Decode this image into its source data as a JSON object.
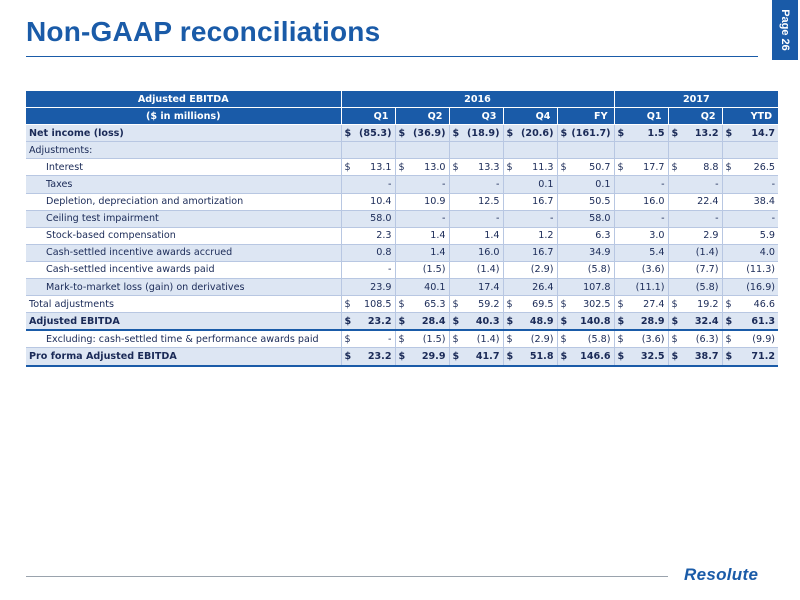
{
  "title": "Non-GAAP reconciliations",
  "page_label": "Page 26",
  "logo_text": "Resolute",
  "table": {
    "header_label": "Adjusted EBITDA",
    "unit_label": "($ in millions)",
    "year_2016": "2016",
    "year_2017": "2017",
    "columns": [
      "Q1",
      "Q2",
      "Q3",
      "Q4",
      "FY",
      "Q1",
      "Q2",
      "YTD"
    ],
    "rows": [
      {
        "label": "Net income (loss)",
        "values": [
          [
            "$",
            "(85.3)"
          ],
          [
            "$",
            "(36.9)"
          ],
          [
            "$",
            "(18.9)"
          ],
          [
            "$",
            "(20.6)"
          ],
          [
            "$",
            "(161.7)"
          ],
          [
            "$",
            "1.5"
          ],
          [
            "$",
            "13.2"
          ],
          [
            "$",
            "14.7"
          ]
        ]
      },
      {
        "label": "Adjustments:",
        "values": [
          [
            "",
            ""
          ],
          [
            "",
            ""
          ],
          [
            "",
            ""
          ],
          [
            "",
            ""
          ],
          [
            "",
            ""
          ],
          [
            "",
            ""
          ],
          [
            "",
            ""
          ],
          [
            "",
            ""
          ]
        ]
      },
      {
        "label": "Interest",
        "values": [
          [
            "$",
            "13.1"
          ],
          [
            "$",
            "13.0"
          ],
          [
            "$",
            "13.3"
          ],
          [
            "$",
            "11.3"
          ],
          [
            "$",
            "50.7"
          ],
          [
            "$",
            "17.7"
          ],
          [
            "$",
            "8.8"
          ],
          [
            "$",
            "26.5"
          ]
        ]
      },
      {
        "label": "Taxes",
        "values": [
          [
            "",
            "-"
          ],
          [
            "",
            "-"
          ],
          [
            "",
            "-"
          ],
          [
            "",
            "0.1"
          ],
          [
            "",
            "0.1"
          ],
          [
            "",
            "-"
          ],
          [
            "",
            "-"
          ],
          [
            "",
            "-"
          ]
        ]
      },
      {
        "label": "Depletion, depreciation and amortization",
        "values": [
          [
            "",
            "10.4"
          ],
          [
            "",
            "10.9"
          ],
          [
            "",
            "12.5"
          ],
          [
            "",
            "16.7"
          ],
          [
            "",
            "50.5"
          ],
          [
            "",
            "16.0"
          ],
          [
            "",
            "22.4"
          ],
          [
            "",
            "38.4"
          ]
        ]
      },
      {
        "label": "Ceiling test impairment",
        "values": [
          [
            "",
            "58.0"
          ],
          [
            "",
            "-"
          ],
          [
            "",
            "-"
          ],
          [
            "",
            "-"
          ],
          [
            "",
            "58.0"
          ],
          [
            "",
            "-"
          ],
          [
            "",
            "-"
          ],
          [
            "",
            "-"
          ]
        ]
      },
      {
        "label": "Stock-based compensation",
        "values": [
          [
            "",
            "2.3"
          ],
          [
            "",
            "1.4"
          ],
          [
            "",
            "1.4"
          ],
          [
            "",
            "1.2"
          ],
          [
            "",
            "6.3"
          ],
          [
            "",
            "3.0"
          ],
          [
            "",
            "2.9"
          ],
          [
            "",
            "5.9"
          ]
        ]
      },
      {
        "label": "Cash-settled incentive awards accrued",
        "values": [
          [
            "",
            "0.8"
          ],
          [
            "",
            "1.4"
          ],
          [
            "",
            "16.0"
          ],
          [
            "",
            "16.7"
          ],
          [
            "",
            "34.9"
          ],
          [
            "",
            "5.4"
          ],
          [
            "",
            "(1.4)"
          ],
          [
            "",
            "4.0"
          ]
        ]
      },
      {
        "label": "Cash-settled incentive awards paid",
        "values": [
          [
            "",
            "-"
          ],
          [
            "",
            "(1.5)"
          ],
          [
            "",
            "(1.4)"
          ],
          [
            "",
            "(2.9)"
          ],
          [
            "",
            "(5.8)"
          ],
          [
            "",
            "(3.6)"
          ],
          [
            "",
            "(7.7)"
          ],
          [
            "",
            "(11.3)"
          ]
        ]
      },
      {
        "label": "Mark-to-market loss (gain) on derivatives",
        "values": [
          [
            "",
            "23.9"
          ],
          [
            "",
            "40.1"
          ],
          [
            "",
            "17.4"
          ],
          [
            "",
            "26.4"
          ],
          [
            "",
            "107.8"
          ],
          [
            "",
            "(11.1)"
          ],
          [
            "",
            "(5.8)"
          ],
          [
            "",
            "(16.9)"
          ]
        ]
      },
      {
        "label": "Total adjustments",
        "values": [
          [
            "$",
            "108.5"
          ],
          [
            "$",
            "65.3"
          ],
          [
            "$",
            "59.2"
          ],
          [
            "$",
            "69.5"
          ],
          [
            "$",
            "302.5"
          ],
          [
            "$",
            "27.4"
          ],
          [
            "$",
            "19.2"
          ],
          [
            "$",
            "46.6"
          ]
        ]
      },
      {
        "label": "Adjusted EBITDA",
        "values": [
          [
            "$",
            "23.2"
          ],
          [
            "$",
            "28.4"
          ],
          [
            "$",
            "40.3"
          ],
          [
            "$",
            "48.9"
          ],
          [
            "$",
            "140.8"
          ],
          [
            "$",
            "28.9"
          ],
          [
            "$",
            "32.4"
          ],
          [
            "$",
            "61.3"
          ]
        ]
      },
      {
        "label": "Excluding: cash-settled time & performance awards paid",
        "values": [
          [
            "$",
            "-"
          ],
          [
            "$",
            "(1.5)"
          ],
          [
            "$",
            "(1.4)"
          ],
          [
            "$",
            "(2.9)"
          ],
          [
            "$",
            "(5.8)"
          ],
          [
            "$",
            "(3.6)"
          ],
          [
            "$",
            "(6.3)"
          ],
          [
            "$",
            "(9.9)"
          ]
        ]
      },
      {
        "label": "Pro forma Adjusted EBITDA",
        "values": [
          [
            "$",
            "23.2"
          ],
          [
            "$",
            "29.9"
          ],
          [
            "$",
            "41.7"
          ],
          [
            "$",
            "51.8"
          ],
          [
            "$",
            "146.6"
          ],
          [
            "$",
            "32.5"
          ],
          [
            "$",
            "38.7"
          ],
          [
            "$",
            "71.2"
          ]
        ]
      }
    ]
  }
}
